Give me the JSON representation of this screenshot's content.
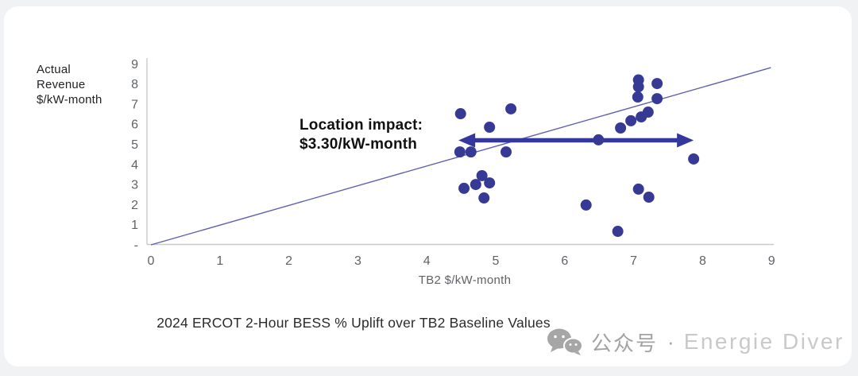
{
  "page": {
    "background": "#f1f2f4",
    "card_background": "#ffffff"
  },
  "chart_data": {
    "type": "scatter",
    "title": "2024 ERCOT 2-Hour BESS % Uplift over TB2 Baseline Values",
    "xlabel": "TB2 $/kW-month",
    "ylabel_lines": [
      "Actual",
      "Revenue",
      "$/kW-month"
    ],
    "xlim": [
      0,
      9
    ],
    "ylim": [
      0,
      9
    ],
    "grid": false,
    "legend": "none",
    "x_tick_labels": [
      "0",
      "1",
      "2",
      "3",
      "4",
      "5",
      "6",
      "7",
      "8",
      "9"
    ],
    "y_tick_labels": [
      "-",
      "1",
      "2",
      "3",
      "4",
      "5",
      "6",
      "7",
      "8",
      "9"
    ],
    "points": [
      [
        4.49,
        6.52
      ],
      [
        5.22,
        6.76
      ],
      [
        4.91,
        5.85
      ],
      [
        4.48,
        4.62
      ],
      [
        4.64,
        4.62
      ],
      [
        5.15,
        4.62
      ],
      [
        4.8,
        3.44
      ],
      [
        4.91,
        3.08
      ],
      [
        4.71,
        3.0
      ],
      [
        4.54,
        2.81
      ],
      [
        4.83,
        2.33
      ],
      [
        6.49,
        5.22
      ],
      [
        6.81,
        5.81
      ],
      [
        6.96,
        6.17
      ],
      [
        7.11,
        6.36
      ],
      [
        7.21,
        6.6
      ],
      [
        7.07,
        8.2
      ],
      [
        7.07,
        7.86
      ],
      [
        7.34,
        8.02
      ],
      [
        7.06,
        7.35
      ],
      [
        7.34,
        7.27
      ],
      [
        7.87,
        4.27
      ],
      [
        6.31,
        1.98
      ],
      [
        7.07,
        2.77
      ],
      [
        7.22,
        2.37
      ],
      [
        6.77,
        0.67
      ]
    ],
    "reference_line": {
      "from": [
        0,
        0
      ],
      "to": [
        8.99,
        8.81
      ],
      "description": "y = x baseline"
    },
    "annotation": {
      "line1": "Location impact:",
      "line2": "$3.30/kW-month",
      "arrow": {
        "y": 5.2,
        "x_start": 4.46,
        "x_end": 7.87,
        "style": "double-headed"
      }
    },
    "colors": {
      "point": "#373a94",
      "arrow": "#34379b",
      "reference_line": "#5d61ae",
      "axis": "#c9cacd",
      "tick_label": "#5f6266",
      "title_text": "#2b2b2b",
      "annotation_text": "#111111"
    }
  },
  "watermark": {
    "icon": "wechat-icon",
    "text_cn": "公众号",
    "separator": "·",
    "text_en": "Energie Diver",
    "icon_color": "#a6a6a6",
    "cn_color": "#a3a3a3",
    "en_color": "#c9c9c9"
  }
}
